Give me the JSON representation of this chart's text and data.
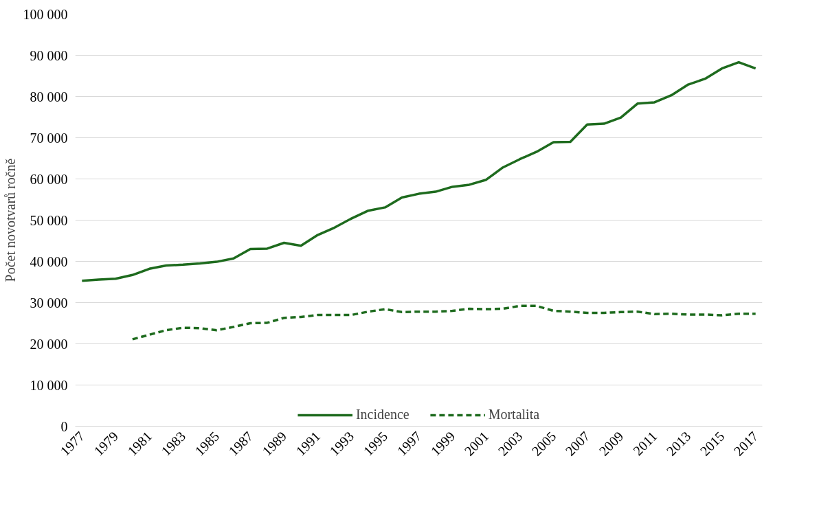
{
  "chart_data": {
    "type": "line",
    "ylabel": "Počet novotvarů ročně",
    "x": [
      1977,
      1978,
      1979,
      1980,
      1981,
      1982,
      1983,
      1984,
      1985,
      1986,
      1987,
      1988,
      1989,
      1990,
      1991,
      1992,
      1993,
      1994,
      1995,
      1996,
      1997,
      1998,
      1999,
      2000,
      2001,
      2002,
      2003,
      2004,
      2005,
      2006,
      2007,
      2008,
      2009,
      2010,
      2011,
      2012,
      2013,
      2014,
      2015,
      2016,
      2017
    ],
    "xlim": [
      1976.6,
      2017.4
    ],
    "xticks": [
      1977,
      1979,
      1981,
      1983,
      1985,
      1987,
      1989,
      1991,
      1993,
      1995,
      1997,
      1999,
      2001,
      2003,
      2005,
      2007,
      2009,
      2011,
      2013,
      2015,
      2017
    ],
    "ylim": [
      0,
      100000
    ],
    "yticks": [
      {
        "value": 0,
        "label": "0"
      },
      {
        "value": 10000,
        "label": "10 000"
      },
      {
        "value": 20000,
        "label": "20 000"
      },
      {
        "value": 30000,
        "label": "30 000"
      },
      {
        "value": 40000,
        "label": "40 000"
      },
      {
        "value": 50000,
        "label": "50 000"
      },
      {
        "value": 60000,
        "label": "60 000"
      },
      {
        "value": 70000,
        "label": "70 000"
      },
      {
        "value": 80000,
        "label": "80 000"
      },
      {
        "value": 90000,
        "label": "90 000"
      },
      {
        "value": 100000,
        "label": "100 000"
      }
    ],
    "grid": "y",
    "legend": "bottom",
    "series": [
      {
        "name": "Incidence",
        "color": "#1e6b1e",
        "line_style": "solid",
        "values": [
          35300,
          35600,
          35800,
          36700,
          38200,
          39000,
          39200,
          39500,
          39900,
          40700,
          43000,
          43100,
          44500,
          43800,
          46400,
          48200,
          50400,
          52300,
          53100,
          55500,
          56400,
          56900,
          58100,
          58600,
          59800,
          62800,
          64800,
          66600,
          68900,
          69000,
          73200,
          73400,
          74900,
          78300,
          78600,
          80300,
          82900,
          84300,
          86800,
          88300,
          86800
        ]
      },
      {
        "name": "Mortalita",
        "color": "#1e6b1e",
        "line_style": "dashed",
        "values": [
          null,
          null,
          null,
          21100,
          22200,
          23300,
          23900,
          23800,
          23300,
          24100,
          25000,
          25100,
          26300,
          26500,
          27000,
          27000,
          27000,
          27800,
          28400,
          27700,
          27800,
          27800,
          28000,
          28500,
          28400,
          28500,
          29200,
          29200,
          28000,
          27800,
          27500,
          27500,
          27700,
          27800,
          27200,
          27300,
          27100,
          27100,
          26900,
          27300,
          27300
        ]
      }
    ]
  }
}
